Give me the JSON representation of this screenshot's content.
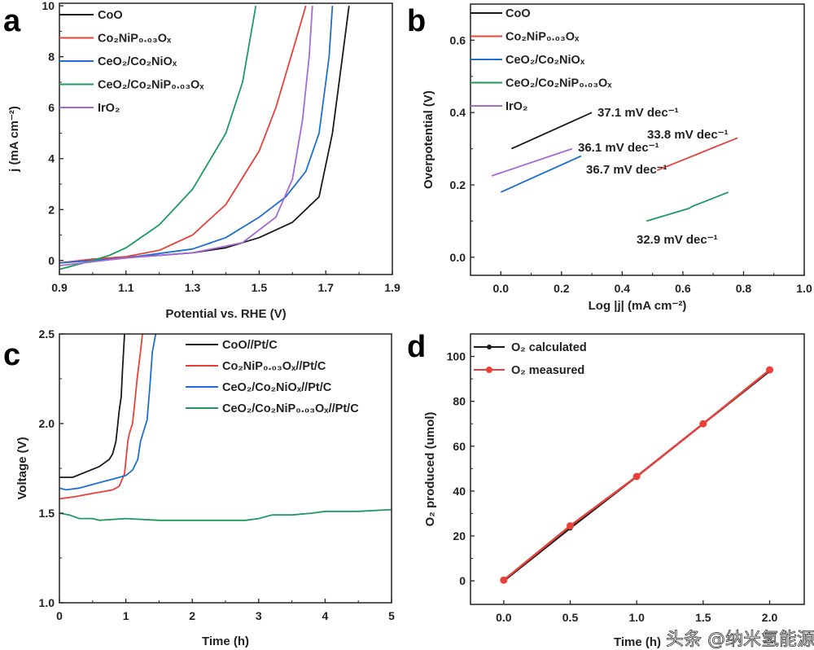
{
  "colors": {
    "black": "#1a1a1a",
    "red": "#e8413a",
    "blue": "#1f6fd1",
    "green": "#1f9a5e",
    "purple": "#a46ad6",
    "axis": "#222222"
  },
  "watermark": "头条 @纳米氢能源",
  "chart_data": [
    {
      "panel": "a",
      "type": "line",
      "xlabel": "Potential vs. RHE (V)",
      "ylabel": "j (mA cm⁻²)",
      "xlim": [
        0.9,
        1.9
      ],
      "ylim": [
        -0.55,
        10.1
      ],
      "xticks": [
        "0.9",
        "1.1",
        "1.3",
        "1.5",
        "1.7",
        "1.9"
      ],
      "xtick_values": [
        0.9,
        1.1,
        1.3,
        1.5,
        1.7,
        1.9
      ],
      "yticks": [
        "0",
        "2",
        "4",
        "6",
        "8",
        "10"
      ],
      "ytick_values": [
        0,
        2,
        4,
        6,
        8,
        10
      ],
      "legend_position": "top-left",
      "series": [
        {
          "name": "CoO",
          "color": "black",
          "x": [
            0.9,
            1.0,
            1.2,
            1.3,
            1.4,
            1.5,
            1.6,
            1.68,
            1.72,
            1.75,
            1.77
          ],
          "y": [
            -0.1,
            0.05,
            0.2,
            0.3,
            0.5,
            0.9,
            1.5,
            2.5,
            5,
            8,
            10
          ]
        },
        {
          "name": "Co₂NiP₀.₀₃Oₓ",
          "color": "red",
          "x": [
            0.9,
            1.0,
            1.1,
            1.2,
            1.3,
            1.4,
            1.5,
            1.55,
            1.6,
            1.64
          ],
          "y": [
            -0.1,
            0.05,
            0.15,
            0.4,
            1.0,
            2.2,
            4.3,
            6,
            8.2,
            10
          ]
        },
        {
          "name": "CeO₂/Co₂NiOₓ",
          "color": "blue",
          "x": [
            0.9,
            1.1,
            1.3,
            1.4,
            1.5,
            1.58,
            1.64,
            1.68,
            1.71,
            1.72
          ],
          "y": [
            -0.1,
            0.1,
            0.45,
            0.9,
            1.7,
            2.5,
            3.5,
            5,
            8,
            10
          ]
        },
        {
          "name": "CeO₂/Co₂NiP₀.₀₃Oₓ",
          "color": "green",
          "x": [
            0.9,
            1.0,
            1.05,
            1.1,
            1.2,
            1.3,
            1.4,
            1.45,
            1.49
          ],
          "y": [
            -0.35,
            0.0,
            0.2,
            0.5,
            1.4,
            2.8,
            5.0,
            7,
            10
          ]
        },
        {
          "name": "IrO₂",
          "color": "purple",
          "x": [
            0.9,
            1.1,
            1.3,
            1.45,
            1.55,
            1.6,
            1.63,
            1.65,
            1.66
          ],
          "y": [
            -0.2,
            0.1,
            0.3,
            0.7,
            1.7,
            3.2,
            5.5,
            8,
            10
          ]
        }
      ]
    },
    {
      "panel": "b",
      "type": "line",
      "xlabel": "Log |j| (mA cm⁻²)",
      "ylabel": "Overpotential (V)",
      "xlim": [
        -0.1,
        1.0
      ],
      "ylim": [
        -0.05,
        0.7
      ],
      "xticks": [
        "0.0",
        "0.2",
        "0.4",
        "0.6",
        "0.8",
        "1.0"
      ],
      "xtick_values": [
        0,
        0.2,
        0.4,
        0.6,
        0.8,
        1.0
      ],
      "yticks": [
        "0.0",
        "0.2",
        "0.4",
        "0.6"
      ],
      "ytick_values": [
        0,
        0.2,
        0.4,
        0.6
      ],
      "legend_position": "top-left",
      "series": [
        {
          "name": "CoO",
          "color": "black",
          "x": [
            0.035,
            0.3
          ],
          "y": [
            0.3,
            0.4
          ],
          "annotation": "37.1 mV dec⁻¹"
        },
        {
          "name": "Co₂NiP₀.₀₃Oₓ",
          "color": "red",
          "x": [
            0.515,
            0.78
          ],
          "y": [
            0.24,
            0.33
          ],
          "annotation": "33.8 mV dec⁻¹"
        },
        {
          "name": "CeO₂/Co₂NiOₓ",
          "color": "blue",
          "x": [
            0.0,
            0.265
          ],
          "y": [
            0.18,
            0.28
          ],
          "annotation": "36.7 mV dec⁻¹"
        },
        {
          "name": "CeO₂/Co₂NiP₀.₀₃Oₓ",
          "color": "green",
          "x": [
            0.48,
            0.62,
            0.63,
            0.75
          ],
          "y": [
            0.1,
            0.135,
            0.14,
            0.18
          ],
          "annotation": "32.9 mV dec⁻¹"
        },
        {
          "name": "IrO₂",
          "color": "purple",
          "x": [
            -0.03,
            0.235
          ],
          "y": [
            0.225,
            0.3
          ],
          "annotation": "36.1 mV dec⁻¹"
        }
      ]
    },
    {
      "panel": "c",
      "type": "line",
      "xlabel": "Time (h)",
      "ylabel": "Voltage (V)",
      "xlim": [
        0,
        5
      ],
      "ylim": [
        1.0,
        2.5
      ],
      "xticks": [
        "0",
        "1",
        "2",
        "3",
        "4",
        "5"
      ],
      "xtick_values": [
        0,
        1,
        2,
        3,
        4,
        5
      ],
      "yticks": [
        "1.0",
        "1.5",
        "2.0",
        "2.5"
      ],
      "ytick_values": [
        1.0,
        1.5,
        2.0,
        2.5
      ],
      "legend_position": "top-right",
      "series": [
        {
          "name": "CoO//Pt/C",
          "color": "black",
          "x": [
            0,
            0.2,
            0.4,
            0.6,
            0.75,
            0.8,
            0.85,
            0.88,
            0.9,
            0.93,
            0.95,
            0.98
          ],
          "y": [
            1.7,
            1.7,
            1.73,
            1.76,
            1.8,
            1.83,
            1.9,
            2.0,
            2.07,
            2.15,
            2.3,
            2.5
          ]
        },
        {
          "name": "Co₂NiP₀.₀₃Oₓ//Pt/C",
          "color": "red",
          "x": [
            0,
            0.2,
            0.5,
            0.8,
            0.9,
            0.98,
            1.03,
            1.05,
            1.1,
            1.13,
            1.17,
            1.22,
            1.25
          ],
          "y": [
            1.58,
            1.59,
            1.61,
            1.63,
            1.65,
            1.72,
            1.9,
            1.94,
            2.0,
            2.1,
            2.25,
            2.4,
            2.5
          ]
        },
        {
          "name": "CeO₂/Co₂NiOₓ//Pt/C",
          "color": "blue",
          "x": [
            0,
            0.1,
            0.3,
            0.5,
            0.8,
            1.0,
            1.1,
            1.18,
            1.22,
            1.27,
            1.32,
            1.36,
            1.4,
            1.45
          ],
          "y": [
            1.64,
            1.63,
            1.64,
            1.66,
            1.69,
            1.71,
            1.74,
            1.8,
            1.9,
            1.96,
            2.02,
            2.2,
            2.4,
            2.5
          ]
        },
        {
          "name": "CeO₂/Co₂NiP₀.₀₃Oₓ//Pt/C",
          "color": "green",
          "x": [
            0,
            0.15,
            0.3,
            0.5,
            0.6,
            1.0,
            1.5,
            2.0,
            2.5,
            2.8,
            3.0,
            3.2,
            3.5,
            3.8,
            4.0,
            4.5,
            5.0
          ],
          "y": [
            1.5,
            1.49,
            1.47,
            1.47,
            1.46,
            1.47,
            1.46,
            1.46,
            1.46,
            1.46,
            1.47,
            1.49,
            1.49,
            1.5,
            1.51,
            1.51,
            1.52
          ]
        }
      ]
    },
    {
      "panel": "d",
      "type": "line",
      "xlabel": "Time (h)",
      "ylabel": "O₂ produced (umol)",
      "xlim": [
        -0.25,
        2.26
      ],
      "ylim": [
        -10.5,
        110
      ],
      "xticks": [
        "0.0",
        "0.5",
        "1.0",
        "1.5",
        "2.0"
      ],
      "xtick_values": [
        0,
        0.5,
        1.0,
        1.5,
        2.0
      ],
      "yticks": [
        "0",
        "20",
        "40",
        "60",
        "80",
        "100"
      ],
      "ytick_values": [
        0,
        20,
        40,
        60,
        80,
        100
      ],
      "legend_position": "top-left",
      "series": [
        {
          "name": "O₂ calculated",
          "color": "black",
          "markers": true,
          "x": [
            0,
            0.5,
            1.0,
            1.5,
            2.0
          ],
          "y": [
            0,
            23.5,
            46.5,
            70,
            93.5
          ]
        },
        {
          "name": "O₂ measured",
          "color": "red",
          "markers": true,
          "x": [
            0,
            0.5,
            1.0,
            1.5,
            2.0
          ],
          "y": [
            0.3,
            24.5,
            46.5,
            70,
            94
          ]
        }
      ]
    }
  ]
}
